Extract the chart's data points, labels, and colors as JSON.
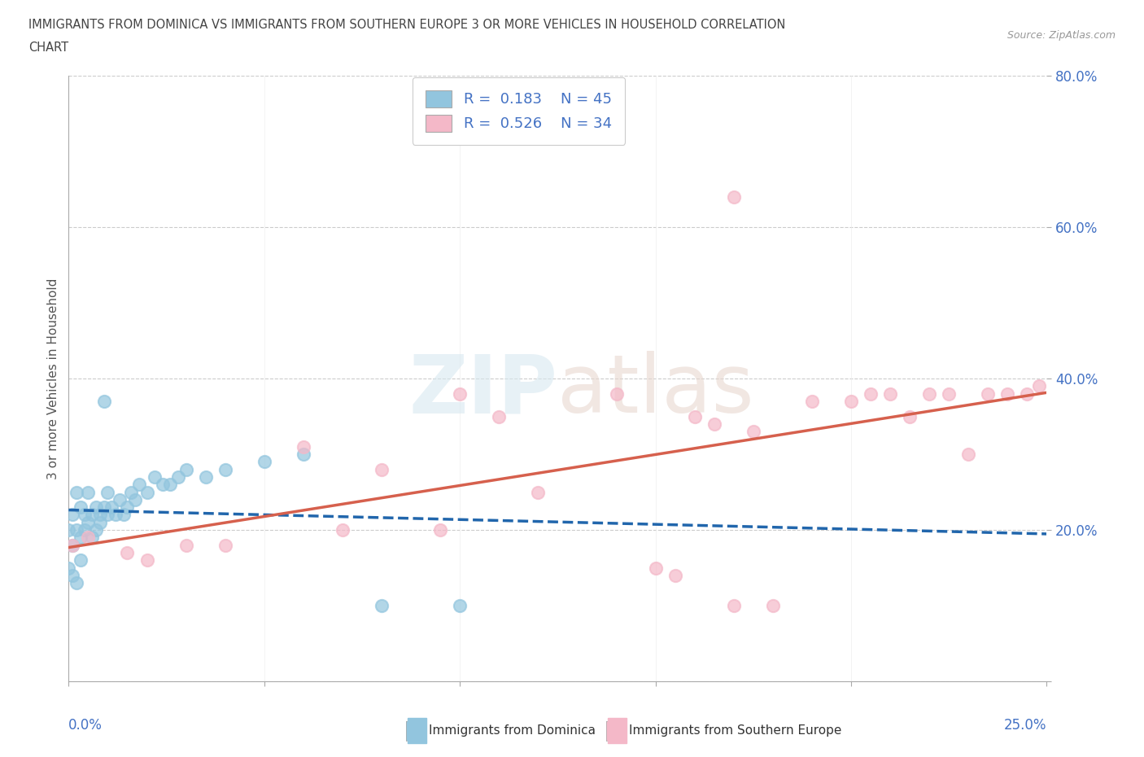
{
  "title_line1": "IMMIGRANTS FROM DOMINICA VS IMMIGRANTS FROM SOUTHERN EUROPE 3 OR MORE VEHICLES IN HOUSEHOLD CORRELATION",
  "title_line2": "CHART",
  "source": "Source: ZipAtlas.com",
  "ylabel": "3 or more Vehicles in Household",
  "xlim": [
    0.0,
    0.25
  ],
  "ylim": [
    0.0,
    0.8
  ],
  "dominica_color": "#92c5de",
  "southern_europe_color": "#f4b8c8",
  "dominica_line_color": "#2166ac",
  "southern_europe_line_color": "#d6604d",
  "R_dominica": 0.183,
  "N_dominica": 45,
  "R_southern": 0.526,
  "N_southern": 34,
  "legend_label_color": "#4472c4",
  "ytick_color": "#4472c4",
  "xtick_color": "#4472c4",
  "dom_x": [
    0.0,
    0.001,
    0.001,
    0.002,
    0.002,
    0.003,
    0.003,
    0.004,
    0.004,
    0.005,
    0.005,
    0.006,
    0.006,
    0.007,
    0.007,
    0.008,
    0.008,
    0.009,
    0.009,
    0.01,
    0.01,
    0.011,
    0.012,
    0.013,
    0.014,
    0.015,
    0.016,
    0.017,
    0.018,
    0.02,
    0.022,
    0.024,
    0.026,
    0.028,
    0.03,
    0.035,
    0.04,
    0.05,
    0.06,
    0.08,
    0.1,
    0.0,
    0.001,
    0.002,
    0.003
  ],
  "dom_y": [
    0.2,
    0.18,
    0.22,
    0.2,
    0.25,
    0.19,
    0.23,
    0.2,
    0.22,
    0.21,
    0.25,
    0.19,
    0.22,
    0.2,
    0.23,
    0.21,
    0.22,
    0.23,
    0.37,
    0.22,
    0.25,
    0.23,
    0.22,
    0.24,
    0.22,
    0.23,
    0.25,
    0.24,
    0.26,
    0.25,
    0.27,
    0.26,
    0.26,
    0.27,
    0.28,
    0.27,
    0.28,
    0.29,
    0.3,
    0.1,
    0.1,
    0.15,
    0.14,
    0.13,
    0.16
  ],
  "sth_x": [
    0.001,
    0.005,
    0.015,
    0.02,
    0.03,
    0.04,
    0.06,
    0.07,
    0.08,
    0.095,
    0.1,
    0.11,
    0.12,
    0.14,
    0.15,
    0.155,
    0.16,
    0.165,
    0.17,
    0.175,
    0.18,
    0.19,
    0.2,
    0.205,
    0.21,
    0.215,
    0.22,
    0.225,
    0.23,
    0.235,
    0.24,
    0.245,
    0.248,
    0.17
  ],
  "sth_y": [
    0.18,
    0.19,
    0.17,
    0.16,
    0.18,
    0.18,
    0.31,
    0.2,
    0.28,
    0.2,
    0.38,
    0.35,
    0.25,
    0.38,
    0.15,
    0.14,
    0.35,
    0.34,
    0.64,
    0.33,
    0.1,
    0.37,
    0.37,
    0.38,
    0.38,
    0.35,
    0.38,
    0.38,
    0.3,
    0.38,
    0.38,
    0.38,
    0.39,
    0.1
  ]
}
